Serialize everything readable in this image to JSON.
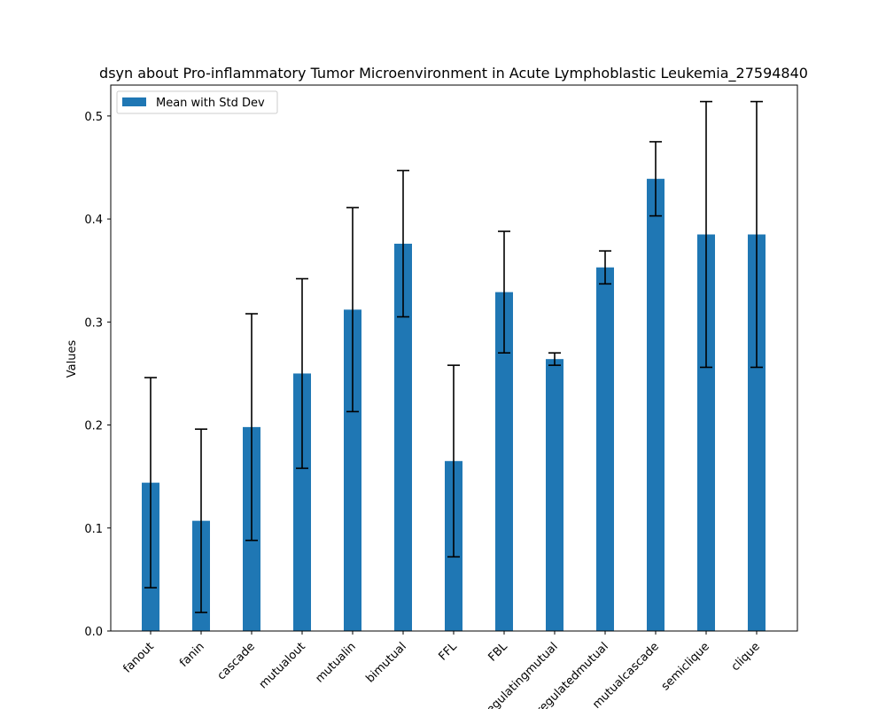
{
  "chart_data": {
    "type": "bar",
    "title": "dsyn about Pro-inflammatory Tumor Microenvironment in Acute Lymphoblastic Leukemia_27594840",
    "xlabel": "",
    "ylabel": "Values",
    "ylim": [
      0,
      0.53
    ],
    "yticks": [
      "0.0",
      "0.1",
      "0.2",
      "0.3",
      "0.4",
      "0.5"
    ],
    "grid": false,
    "legend_position": "top-left",
    "categories": [
      "fanout",
      "fanin",
      "cascade",
      "mutualout",
      "mutualin",
      "bimutual",
      "FFL",
      "FBL",
      "regulatingmutual",
      "regulatedmutual",
      "mutualcascade",
      "semiclique",
      "clique"
    ],
    "series": [
      {
        "name": "Mean with Std Dev",
        "color": "#1f77b4",
        "values": [
          0.144,
          0.107,
          0.198,
          0.25,
          0.312,
          0.376,
          0.165,
          0.329,
          0.264,
          0.353,
          0.439,
          0.385,
          0.385
        ],
        "errors": [
          0.102,
          0.089,
          0.11,
          0.092,
          0.099,
          0.071,
          0.093,
          0.059,
          0.006,
          0.016,
          0.036,
          0.129,
          0.129
        ]
      }
    ]
  }
}
